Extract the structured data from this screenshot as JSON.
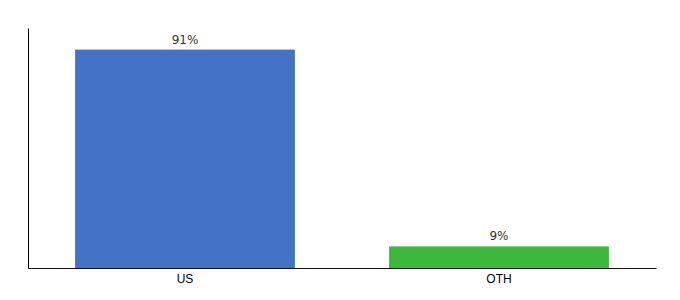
{
  "chart_data": {
    "type": "bar",
    "categories": [
      "US",
      "OTH"
    ],
    "values": [
      91,
      9
    ],
    "value_labels": [
      "91%",
      "9%"
    ],
    "colors": [
      "#4472c4",
      "#3cb83c"
    ],
    "ylim": [
      0,
      100
    ],
    "grid": false,
    "data_labels": true,
    "tick_labels": "x"
  }
}
